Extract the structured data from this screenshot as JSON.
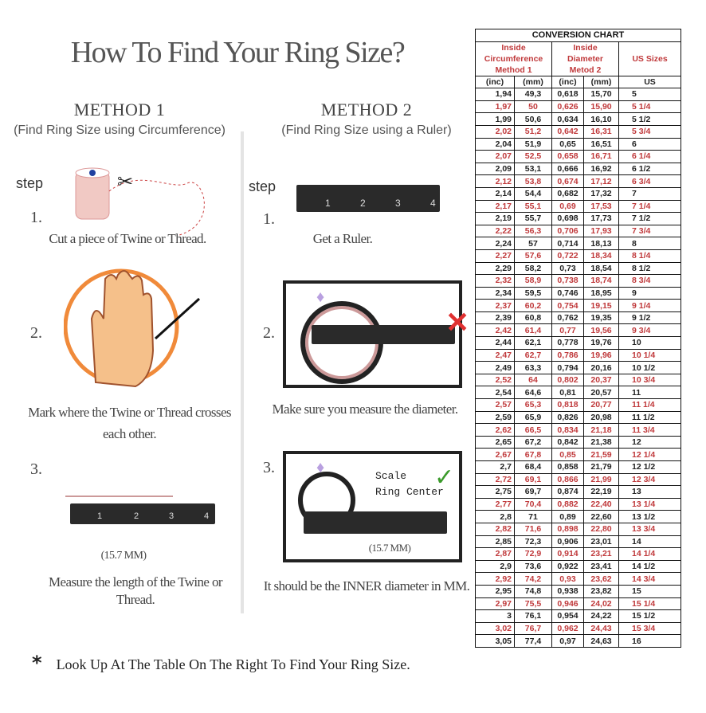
{
  "title": "How To Find Your Ring Size?",
  "method1": {
    "heading": "METHOD 1",
    "subtitle": "(Find Ring Size using Circumference)",
    "step_label": "step",
    "steps": [
      {
        "num": "1.",
        "text": "Cut a piece of Twine or Thread."
      },
      {
        "num": "2.",
        "text": "Mark where the Twine or Thread crosses each other."
      },
      {
        "num": "3.",
        "text": "Measure the length of the Twine or Thread."
      }
    ],
    "measure": "(15.7 MM)"
  },
  "method2": {
    "heading": "METHOD 2",
    "subtitle": "(Find Ring Size using a Ruler)",
    "step_label": "step",
    "steps": [
      {
        "num": "1.",
        "text": "Get a Ruler."
      },
      {
        "num": "2.",
        "text": "Make sure you measure the diameter."
      },
      {
        "num": "3.",
        "text": "It should be the INNER diameter in MM."
      }
    ],
    "scale_label": "Scale",
    "ring_center_label": "Ring Center",
    "measure": "(15.7 MM)"
  },
  "ruler_numbers": [
    "1",
    "2",
    "3",
    "4"
  ],
  "footer": {
    "bullet": "*",
    "text": "Look Up At The Table On The Right To Find Your Ring Size."
  },
  "colors": {
    "accent_red": "#c0393b",
    "check_green": "#3a9a2a",
    "cross_red": "#e03030"
  },
  "chart": {
    "title": "CONVERSION CHART",
    "group1": "Inside Circumference Method 1",
    "group2": "Inside Diameter Metod 2",
    "group3": "US Sizes",
    "columns": [
      "(inc)",
      "(mm)",
      "(inc)",
      "(mm)",
      "US"
    ],
    "rows": [
      [
        "1,94",
        "49,3",
        "0,618",
        "15,70",
        "5"
      ],
      [
        "1,97",
        "50",
        "0,626",
        "15,90",
        "5 1/4"
      ],
      [
        "1,99",
        "50,6",
        "0,634",
        "16,10",
        "5 1/2"
      ],
      [
        "2,02",
        "51,2",
        "0,642",
        "16,31",
        "5 3/4"
      ],
      [
        "2,04",
        "51,9",
        "0,65",
        "16,51",
        "6"
      ],
      [
        "2,07",
        "52,5",
        "0,658",
        "16,71",
        "6 1/4"
      ],
      [
        "2,09",
        "53,1",
        "0,666",
        "16,92",
        "6 1/2"
      ],
      [
        "2,12",
        "53,8",
        "0,674",
        "17,12",
        "6 3/4"
      ],
      [
        "2,14",
        "54,4",
        "0,682",
        "17,32",
        "7"
      ],
      [
        "2,17",
        "55,1",
        "0,69",
        "17,53",
        "7 1/4"
      ],
      [
        "2,19",
        "55,7",
        "0,698",
        "17,73",
        "7 1/2"
      ],
      [
        "2,22",
        "56,3",
        "0,706",
        "17,93",
        "7 3/4"
      ],
      [
        "2,24",
        "57",
        "0,714",
        "18,13",
        "8"
      ],
      [
        "2,27",
        "57,6",
        "0,722",
        "18,34",
        "8 1/4"
      ],
      [
        "2,29",
        "58,2",
        "0,73",
        "18,54",
        "8 1/2"
      ],
      [
        "2,32",
        "58,9",
        "0,738",
        "18,74",
        "8 3/4"
      ],
      [
        "2,34",
        "59,5",
        "0,746",
        "18,95",
        "9"
      ],
      [
        "2,37",
        "60,2",
        "0,754",
        "19,15",
        "9 1/4"
      ],
      [
        "2,39",
        "60,8",
        "0,762",
        "19,35",
        "9 1/2"
      ],
      [
        "2,42",
        "61,4",
        "0,77",
        "19,56",
        "9 3/4"
      ],
      [
        "2,44",
        "62,1",
        "0,778",
        "19,76",
        "10"
      ],
      [
        "2,47",
        "62,7",
        "0,786",
        "19,96",
        "10 1/4"
      ],
      [
        "2,49",
        "63,3",
        "0,794",
        "20,16",
        "10 1/2"
      ],
      [
        "2,52",
        "64",
        "0,802",
        "20,37",
        "10 3/4"
      ],
      [
        "2,54",
        "64,6",
        "0,81",
        "20,57",
        "11"
      ],
      [
        "2,57",
        "65,3",
        "0,818",
        "20,77",
        "11 1/4"
      ],
      [
        "2,59",
        "65,9",
        "0,826",
        "20,98",
        "11 1/2"
      ],
      [
        "2,62",
        "66,5",
        "0,834",
        "21,18",
        "11 3/4"
      ],
      [
        "2,65",
        "67,2",
        "0,842",
        "21,38",
        "12"
      ],
      [
        "2,67",
        "67,8",
        "0,85",
        "21,59",
        "12 1/4"
      ],
      [
        "2,7",
        "68,4",
        "0,858",
        "21,79",
        "12 1/2"
      ],
      [
        "2,72",
        "69,1",
        "0,866",
        "21,99",
        "12 3/4"
      ],
      [
        "2,75",
        "69,7",
        "0,874",
        "22,19",
        "13"
      ],
      [
        "2,77",
        "70,4",
        "0,882",
        "22,40",
        "13 1/4"
      ],
      [
        "2,8",
        "71",
        "0,89",
        "22,60",
        "13 1/2"
      ],
      [
        "2,82",
        "71,6",
        "0,898",
        "22,80",
        "13 3/4"
      ],
      [
        "2,85",
        "72,3",
        "0,906",
        "23,01",
        "14"
      ],
      [
        "2,87",
        "72,9",
        "0,914",
        "23,21",
        "14 1/4"
      ],
      [
        "2,9",
        "73,6",
        "0,922",
        "23,41",
        "14 1/2"
      ],
      [
        "2,92",
        "74,2",
        "0,93",
        "23,62",
        "14 3/4"
      ],
      [
        "2,95",
        "74,8",
        "0,938",
        "23,82",
        "15"
      ],
      [
        "2,97",
        "75,5",
        "0,946",
        "24,02",
        "15 1/4"
      ],
      [
        "3",
        "76,1",
        "0,954",
        "24,22",
        "15 1/2"
      ],
      [
        "3,02",
        "76,7",
        "0,962",
        "24,43",
        "15 3/4"
      ],
      [
        "3,05",
        "77,4",
        "0,97",
        "24,63",
        "16"
      ]
    ]
  }
}
